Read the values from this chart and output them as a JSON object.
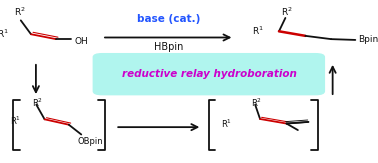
{
  "bg_color": "#ffffff",
  "base_cat_text": "base (cat.)",
  "hbpin_text": "HBpin",
  "relay_text": "reductive relay hydroboration",
  "relay_box_color": "#b0f5ee",
  "relay_text_color": "#cc00cc",
  "blue_text_color": "#2255ff",
  "black_text_color": "#111111",
  "red_color": "#cc0000"
}
